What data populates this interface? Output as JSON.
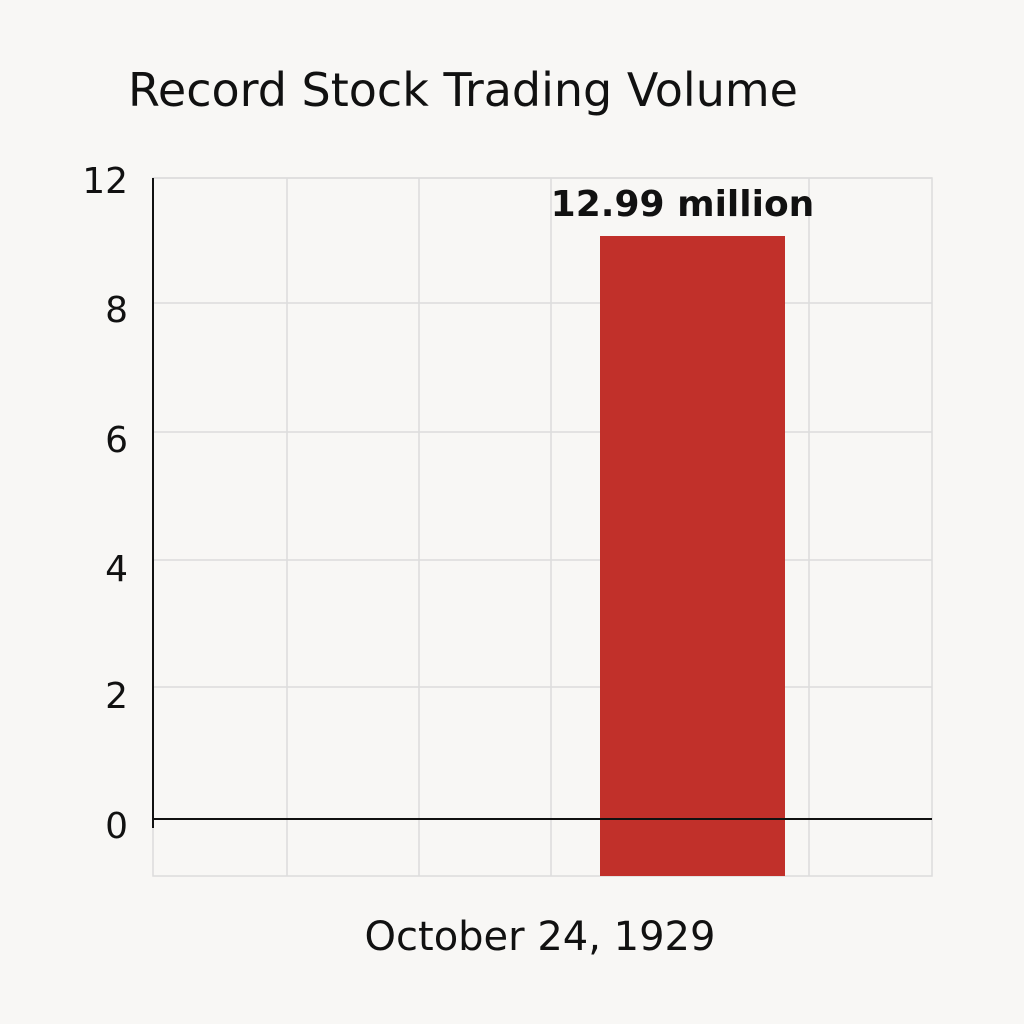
{
  "chart_data": {
    "type": "bar",
    "title": "Record Stock Trading Volume",
    "categories": [
      "October 24, 1929"
    ],
    "values": [
      12.99
    ],
    "data_labels": [
      "12.99 million"
    ],
    "y_ticks": [
      0,
      2,
      4,
      6,
      8,
      12
    ],
    "ylim": [
      0,
      12
    ],
    "xlabel": "",
    "ylabel": "",
    "grid": true,
    "legend": "none",
    "bar_color": "#c1302a"
  }
}
